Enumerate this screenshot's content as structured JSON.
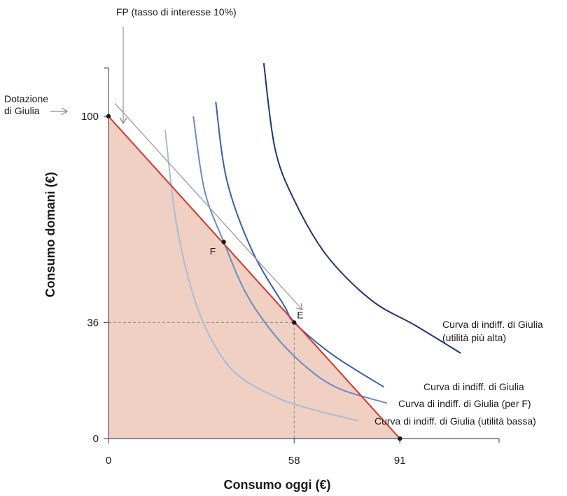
{
  "chart_data": {
    "type": "line",
    "xlabel": "Consumo oggi (€)",
    "ylabel": "Consumo domani (€)",
    "xlim": [
      0,
      122
    ],
    "ylim": [
      0,
      115
    ],
    "x_ticks": [
      {
        "value": 0,
        "label": "0"
      },
      {
        "value": 58,
        "label": "58"
      },
      {
        "value": 91,
        "label": "91"
      }
    ],
    "y_ticks": [
      {
        "value": 0,
        "label": "0"
      },
      {
        "value": 36,
        "label": "36"
      },
      {
        "value": 100,
        "label": "100"
      }
    ],
    "feasible_frontier": {
      "name": "FP",
      "label": "FP (tasso di interesse 10%)",
      "points": [
        [
          0,
          100
        ],
        [
          91,
          0
        ]
      ],
      "color": "#d9342b",
      "fill_color": "#efd0c2"
    },
    "endowment": {
      "label": "Dotazione\ndi Giulia",
      "label_lines": [
        "Dotazione",
        "di Giulia"
      ],
      "point": [
        0,
        100
      ]
    },
    "points": [
      {
        "name": "E",
        "x": 58,
        "y": 36
      },
      {
        "name": "F",
        "x": 36,
        "y": 61
      }
    ],
    "indifference_curves": [
      {
        "label": "Curva di indiff. di Giulia (utilità bassa)",
        "color": "#a7bcdc",
        "points": [
          [
            17.7,
            95.8
          ],
          [
            21,
            68
          ],
          [
            26,
            46
          ],
          [
            32,
            31
          ],
          [
            40,
            20
          ],
          [
            52,
            13
          ],
          [
            62,
            9.5
          ],
          [
            78,
            5.5
          ]
        ]
      },
      {
        "label": "Curva di indiff. di Giulia (per F)",
        "color": "#6a8cc6",
        "points": [
          [
            26.5,
            100
          ],
          [
            30,
            77
          ],
          [
            36,
            61
          ],
          [
            43,
            45
          ],
          [
            52,
            32
          ],
          [
            62,
            22
          ],
          [
            72,
            15.5
          ],
          [
            87,
            11
          ]
        ]
      },
      {
        "label": "Curva di indiff. di Giulia",
        "color": "#3a5fae",
        "points": [
          [
            33.5,
            104.5
          ],
          [
            37,
            80
          ],
          [
            45,
            58
          ],
          [
            55,
            41
          ],
          [
            58,
            36
          ],
          [
            70,
            26
          ],
          [
            86,
            16
          ]
        ]
      },
      {
        "label_lines": [
          "Curva di indiff. di Giulia",
          "(utilità più alta)"
        ],
        "color": "#1f3676",
        "points": [
          [
            48.5,
            116.5
          ],
          [
            52,
            90
          ],
          [
            58,
            74
          ],
          [
            68,
            57
          ],
          [
            82,
            43
          ],
          [
            96,
            35
          ],
          [
            110,
            26.5
          ]
        ]
      }
    ],
    "arrow": {
      "from": [
        2,
        104
      ],
      "to": [
        60.5,
        40
      ]
    },
    "guides": {
      "x": 58,
      "y": 36
    }
  }
}
